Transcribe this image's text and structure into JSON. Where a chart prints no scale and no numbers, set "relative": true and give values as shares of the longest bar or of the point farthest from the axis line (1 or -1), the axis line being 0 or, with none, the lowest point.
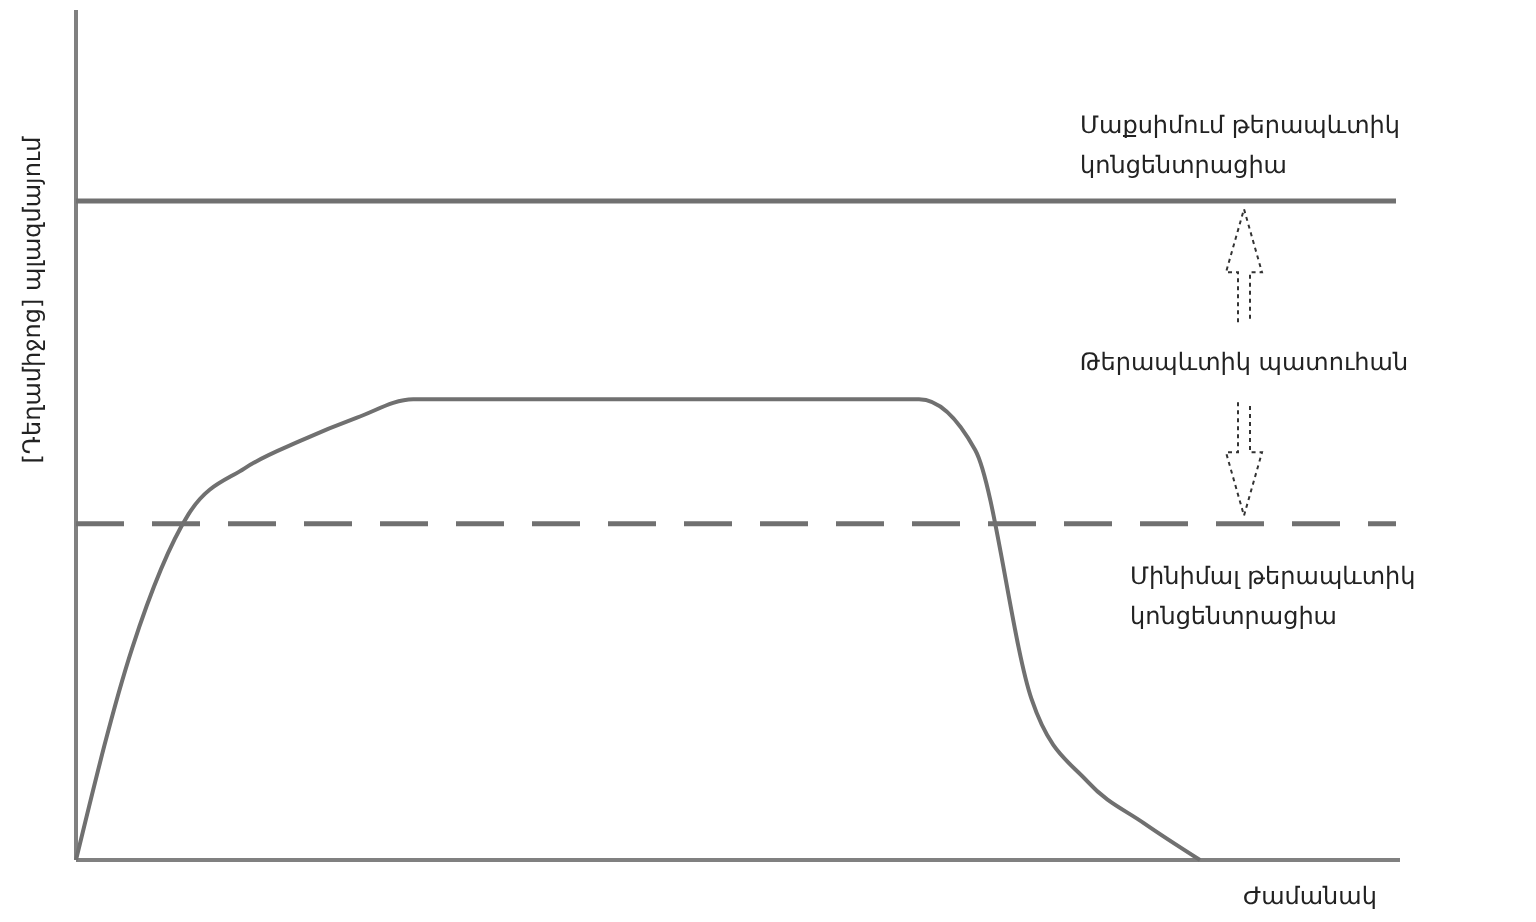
{
  "chart_data": {
    "type": "line",
    "relative": true,
    "xlabel": "Ժամանակ",
    "ylabel": "[Դեղամիջոց] պլազմայում",
    "categories": [
      null,
      null,
      null,
      null,
      null,
      null,
      null,
      null,
      null,
      null,
      null,
      null,
      null,
      null,
      null,
      null,
      null,
      null,
      null,
      null,
      null
    ],
    "series": [
      {
        "color": "#707070",
        "values": [
          0,
          0.46,
          0.75,
          0.85,
          0.91,
          0.96,
          1,
          1,
          1,
          1,
          1,
          1,
          1,
          1,
          1,
          1,
          0.89,
          0.35,
          0.17,
          0.08,
          0
        ]
      }
    ],
    "ref_lines": [
      {
        "axis": "y",
        "value": 1.43,
        "label": "Մաքսիմում թերապևտիկ կոնցենտրացիա",
        "color": "#707070",
        "line_style": "solid"
      },
      {
        "axis": "y",
        "value": 0.73,
        "label": "Մինիմալ թերապևտիկ կոնցենտրացիա",
        "color": "#707070",
        "line_style": "dashed"
      }
    ],
    "annotations": [
      "Թերապևտիկ պատուհան"
    ],
    "marker": "none",
    "line_style": "solid"
  }
}
